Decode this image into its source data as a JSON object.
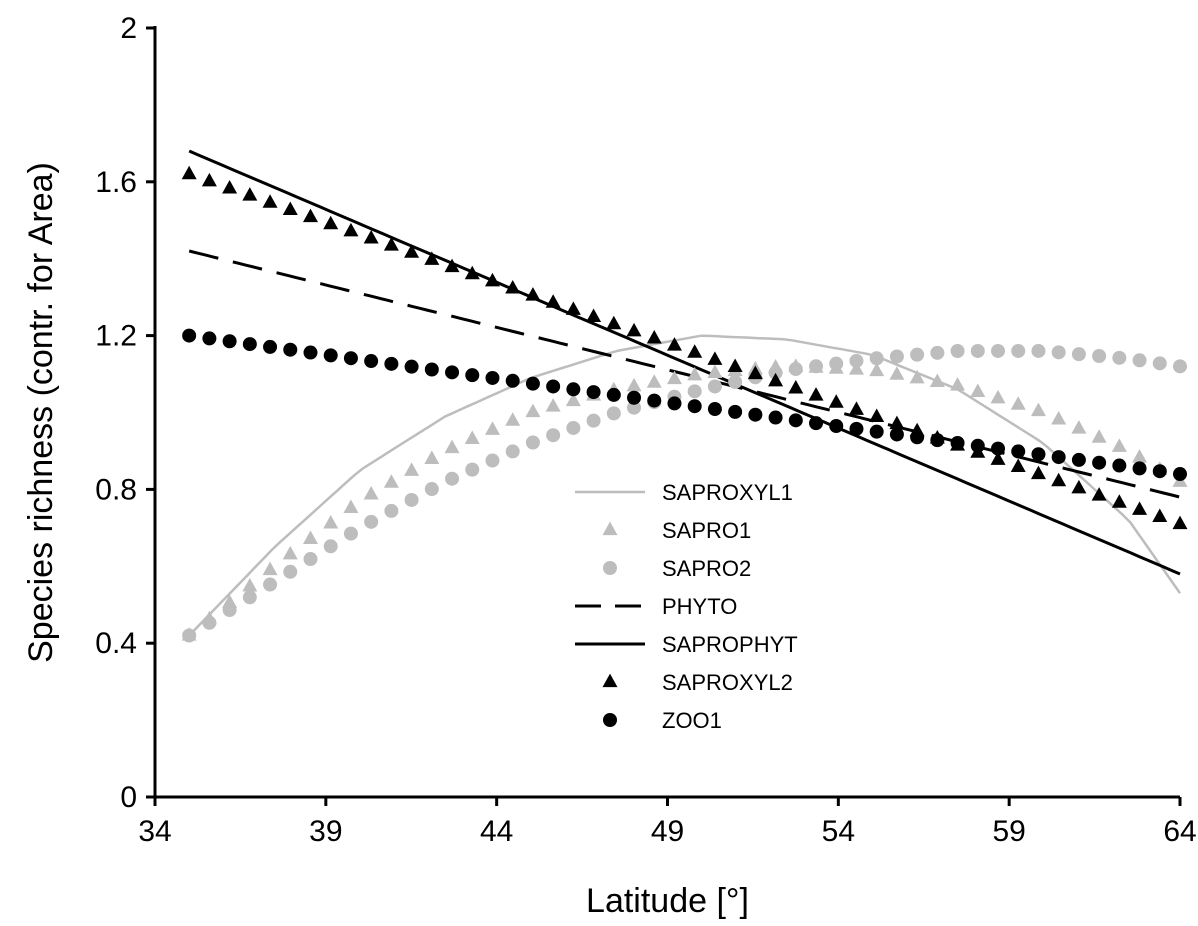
{
  "chart_data": {
    "type": "line",
    "title": "",
    "xlabel": "Latitude [°]",
    "ylabel": "Species richness (contr. for Area)",
    "xlim": [
      34,
      64
    ],
    "ylim": [
      0,
      2
    ],
    "xticks": [
      "34",
      "39",
      "44",
      "49",
      "54",
      "59",
      "64"
    ],
    "yticks": [
      "0",
      "0.4",
      "0.8",
      "1.2",
      "1.6",
      "2"
    ],
    "grid": false,
    "legend_position": "center-bottom",
    "series": [
      {
        "name": "SAPROXYL1",
        "style": "line",
        "color": "#bdbdbd",
        "x": [
          35,
          37.5,
          40,
          42.5,
          45,
          47.5,
          50,
          52.5,
          55,
          57.5,
          60,
          62.5,
          64
        ],
        "y": [
          0.42,
          0.65,
          0.85,
          0.99,
          1.09,
          1.16,
          1.2,
          1.19,
          1.15,
          1.06,
          0.92,
          0.72,
          0.53
        ]
      },
      {
        "name": "SAPRO1",
        "style": "triangle",
        "color": "#bdbdbd",
        "x": [
          35,
          37.5,
          40,
          42.5,
          45,
          47.5,
          50,
          52.5,
          55,
          57.5,
          60,
          62.5,
          64
        ],
        "y": [
          0.42,
          0.6,
          0.77,
          0.9,
          1.0,
          1.06,
          1.1,
          1.12,
          1.11,
          1.07,
          1.0,
          0.9,
          0.82
        ]
      },
      {
        "name": "SAPRO2",
        "style": "circle",
        "color": "#bdbdbd",
        "x": [
          35,
          37.5,
          40,
          42.5,
          45,
          47.5,
          50,
          52.5,
          55,
          57.5,
          60,
          62.5,
          64
        ],
        "y": [
          0.42,
          0.56,
          0.7,
          0.82,
          0.92,
          1.0,
          1.06,
          1.11,
          1.14,
          1.16,
          1.16,
          1.14,
          1.12
        ]
      },
      {
        "name": "PHYTO",
        "style": "dashed",
        "color": "#000000",
        "x": [
          35,
          64
        ],
        "y": [
          1.42,
          0.78
        ]
      },
      {
        "name": "SAPROPHYT",
        "style": "line",
        "color": "#000000",
        "x": [
          35,
          64
        ],
        "y": [
          1.68,
          0.58
        ]
      },
      {
        "name": "SAPROXYL2",
        "style": "triangle",
        "color": "#000000",
        "x": [
          35,
          64
        ],
        "y": [
          1.62,
          0.71
        ]
      },
      {
        "name": "ZOO1",
        "style": "circle",
        "color": "#000000",
        "x": [
          35,
          64
        ],
        "y": [
          1.2,
          0.84
        ]
      }
    ]
  }
}
